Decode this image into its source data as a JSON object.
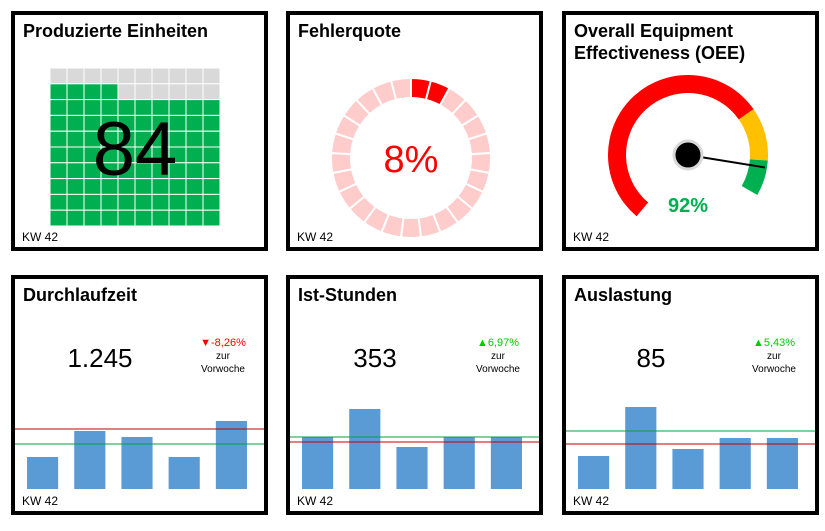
{
  "colors": {
    "green": "#00b050",
    "gray": "#d9d9d9",
    "red": "#ff0000",
    "pink": "#ffcccc",
    "orange": "#ffc000",
    "blue": "#5b9bd5",
    "up": "#00cc00"
  },
  "week_label": "KW 42",
  "chart_data": [
    {
      "type": "waffle",
      "title": "Produzierte Einheiten",
      "value": 84,
      "value_label": "84",
      "total_cells": 100,
      "footer": "KW 42"
    },
    {
      "type": "donut",
      "title": "Fehlerquote",
      "value_percent": 8,
      "value_label": "8%",
      "segments": 25,
      "footer": "KW 42"
    },
    {
      "type": "gauge",
      "title": "Overall Equipment Effectiveness (OEE)",
      "value_percent": 92,
      "value_label": "92%",
      "bands": [
        {
          "from": 0,
          "to": 75,
          "color": "red"
        },
        {
          "from": 75,
          "to": 90,
          "color": "orange"
        },
        {
          "from": 90,
          "to": 100,
          "color": "green"
        }
      ],
      "footer": "KW 42"
    },
    {
      "type": "bar",
      "title": "Durchlaufzeit",
      "kpi": "1.245",
      "change": "▼-8,26%",
      "change_dir": "down",
      "change_caption": "zur\nVorwoche",
      "values": [
        32,
        58,
        52,
        32,
        68
      ],
      "ylim": [
        0,
        100
      ],
      "red_line": 60,
      "green_line": 45,
      "footer": "KW 42"
    },
    {
      "type": "bar",
      "title": "Ist-Stunden",
      "kpi": "353",
      "change": "▲6,97%",
      "change_dir": "up",
      "change_caption": "zur\nVorwoche",
      "values": [
        52,
        80,
        42,
        52,
        52
      ],
      "ylim": [
        0,
        100
      ],
      "red_line": 47,
      "green_line": 52,
      "footer": "KW 42"
    },
    {
      "type": "bar",
      "title": "Auslastung",
      "kpi": "85",
      "change": "▲5,43%",
      "change_dir": "up",
      "change_caption": "zur\nVorwoche",
      "values": [
        33,
        82,
        40,
        51,
        51
      ],
      "ylim": [
        0,
        100
      ],
      "red_line": 45,
      "green_line": 58,
      "footer": "KW 42"
    }
  ]
}
